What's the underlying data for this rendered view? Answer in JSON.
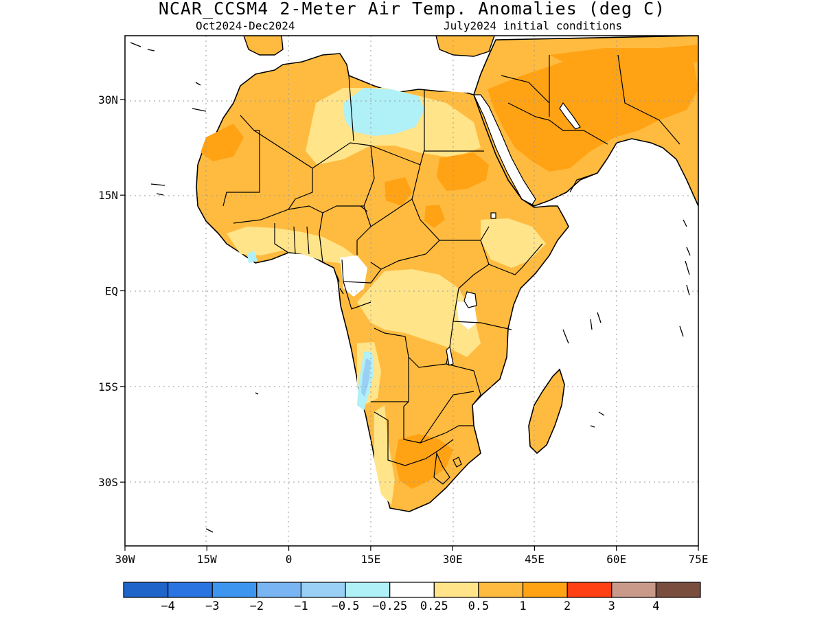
{
  "title": "NCAR_CCSM4 2-Meter Air Temp. Anomalies (deg C)",
  "subtitle_left": "Oct2024-Dec2024",
  "subtitle_right": "July2024 initial conditions",
  "map": {
    "lon_range": [
      -30,
      75
    ],
    "lat_range": [
      -40,
      40
    ],
    "lon_ticks": [
      {
        "value": -30,
        "label": "30W"
      },
      {
        "value": -15,
        "label": "15W"
      },
      {
        "value": 0,
        "label": "0"
      },
      {
        "value": 15,
        "label": "15E"
      },
      {
        "value": 30,
        "label": "30E"
      },
      {
        "value": 45,
        "label": "45E"
      },
      {
        "value": 60,
        "label": "60E"
      },
      {
        "value": 75,
        "label": "75E"
      }
    ],
    "lat_ticks": [
      {
        "value": 30,
        "label": "30N"
      },
      {
        "value": 15,
        "label": "15N"
      },
      {
        "value": 0,
        "label": "EQ"
      },
      {
        "value": -15,
        "label": "15S"
      },
      {
        "value": -30,
        "label": "30S"
      }
    ],
    "gridlines": true
  },
  "colorbar": {
    "colors": [
      "#1f64c9",
      "#2a74e2",
      "#3d95f0",
      "#78b5f2",
      "#9ad0f6",
      "#b0f0f7",
      "#ffffff",
      "#ffe48a",
      "#ffbb3f",
      "#ffa214",
      "#ff3f14",
      "#c99a8a",
      "#7a4e3f"
    ],
    "labels": [
      "-4",
      "-3",
      "-2",
      "-1",
      "-0.5",
      "-0.25",
      "0.25",
      "0.5",
      "1",
      "2",
      "3",
      "4"
    ]
  }
}
